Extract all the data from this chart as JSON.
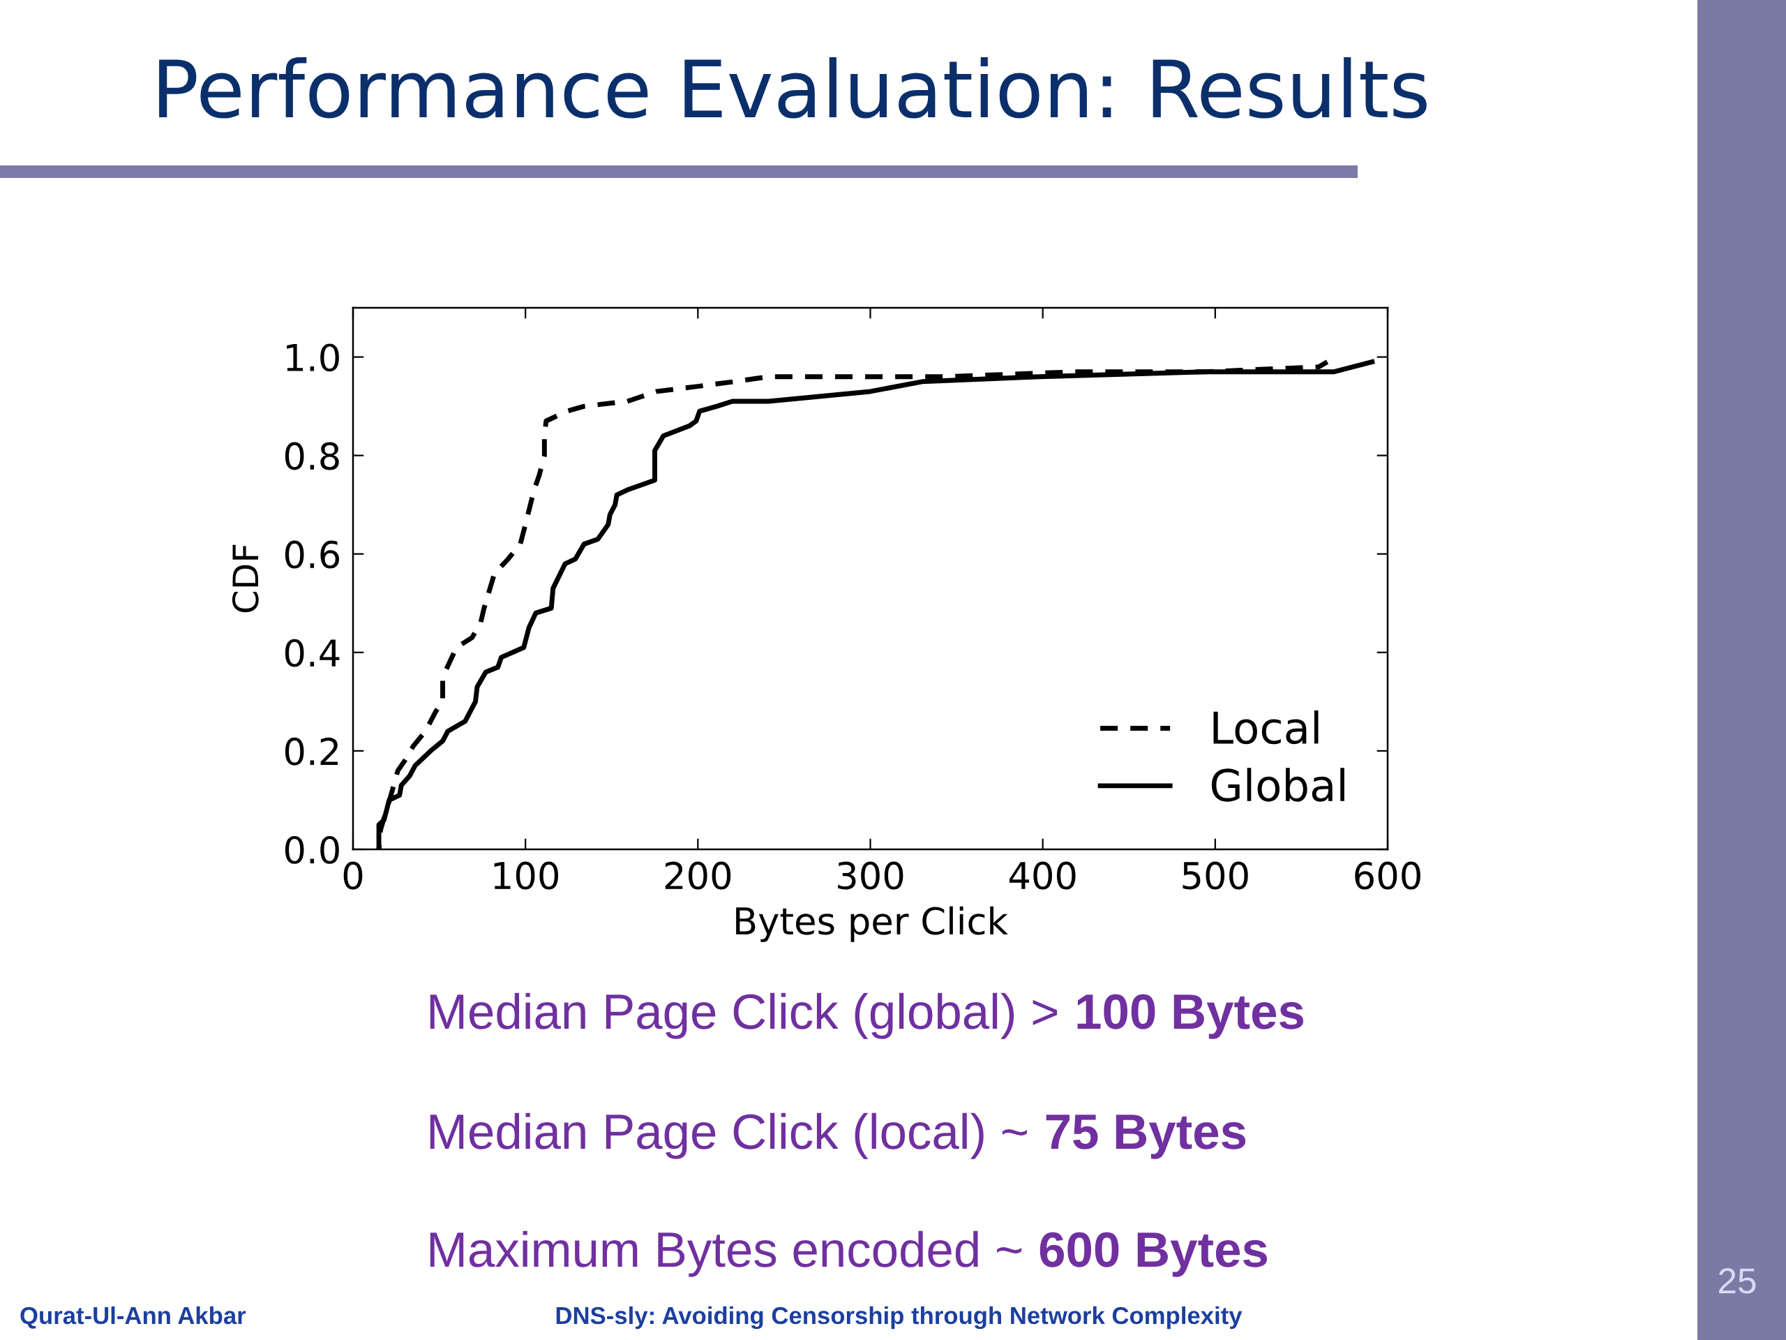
{
  "chart_data": {
    "type": "line",
    "title": "Performance Evaluation: Results",
    "xlabel": "Bytes per Click",
    "ylabel": "CDF",
    "series": [
      {
        "name": "Local",
        "color": "#000000",
        "line_style": "dashed",
        "x": [
          15,
          16,
          22,
          26,
          30,
          35,
          42,
          48,
          52,
          52,
          60,
          69,
          74,
          76,
          82,
          90,
          97,
          100,
          105,
          108,
          111,
          111,
          112,
          124,
          134,
          159,
          176,
          199,
          221,
          241,
          343,
          419,
          494,
          560,
          565
        ],
        "values": [
          0,
          0.04,
          0.11,
          0.16,
          0.18,
          0.21,
          0.24,
          0.28,
          0.3,
          0.35,
          0.41,
          0.43,
          0.46,
          0.49,
          0.56,
          0.59,
          0.62,
          0.66,
          0.73,
          0.76,
          0.8,
          0.84,
          0.87,
          0.89,
          0.9,
          0.91,
          0.93,
          0.94,
          0.95,
          0.96,
          0.96,
          0.97,
          0.97,
          0.98,
          0.99
        ]
      },
      {
        "name": "Global",
        "color": "#000000",
        "line_style": "solid",
        "x": [
          15,
          15,
          18,
          21,
          27,
          28,
          33,
          36,
          45,
          52,
          55,
          65,
          68,
          71,
          72,
          77,
          84,
          86,
          99,
          102,
          106,
          115,
          116,
          123,
          129,
          134,
          142,
          148,
          149,
          152,
          153,
          159,
          175,
          175,
          180,
          195,
          199,
          201,
          211,
          220,
          241,
          300,
          330,
          398,
          494,
          569,
          591
        ],
        "values": [
          0,
          0.05,
          0.06,
          0.1,
          0.11,
          0.13,
          0.15,
          0.17,
          0.2,
          0.22,
          0.24,
          0.26,
          0.28,
          0.3,
          0.33,
          0.36,
          0.37,
          0.39,
          0.41,
          0.45,
          0.48,
          0.49,
          0.53,
          0.58,
          0.59,
          0.62,
          0.63,
          0.66,
          0.68,
          0.7,
          0.72,
          0.73,
          0.75,
          0.81,
          0.84,
          0.86,
          0.87,
          0.89,
          0.9,
          0.91,
          0.91,
          0.93,
          0.95,
          0.96,
          0.97,
          0.97,
          0.99
        ]
      }
    ],
    "xlim": [
      0,
      600
    ],
    "xticks": [
      0,
      100,
      200,
      300,
      400,
      500,
      600
    ],
    "ylim": [
      0,
      1.1
    ],
    "yticks": [
      {
        "value": 0,
        "label": "0.0"
      },
      {
        "value": 0.2,
        "label": "0.2"
      },
      {
        "value": 0.4,
        "label": "0.4"
      },
      {
        "value": 0.6,
        "label": "0.6"
      },
      {
        "value": 0.8,
        "label": "0.8"
      },
      {
        "value": 1.0,
        "label": "1.0"
      }
    ],
    "legend": "bottom right",
    "annotations": [
      "Median Page Click (global) >",
      "100 Bytes",
      "Median Page Click (local) ~",
      "75 Bytes",
      "Maximum Bytes encoded ~",
      "600 Bytes",
      "Qurat-Ul-Ann Akbar",
      "DNS-sly: Avoiding Censorship through Network Complexity",
      "25"
    ]
  }
}
